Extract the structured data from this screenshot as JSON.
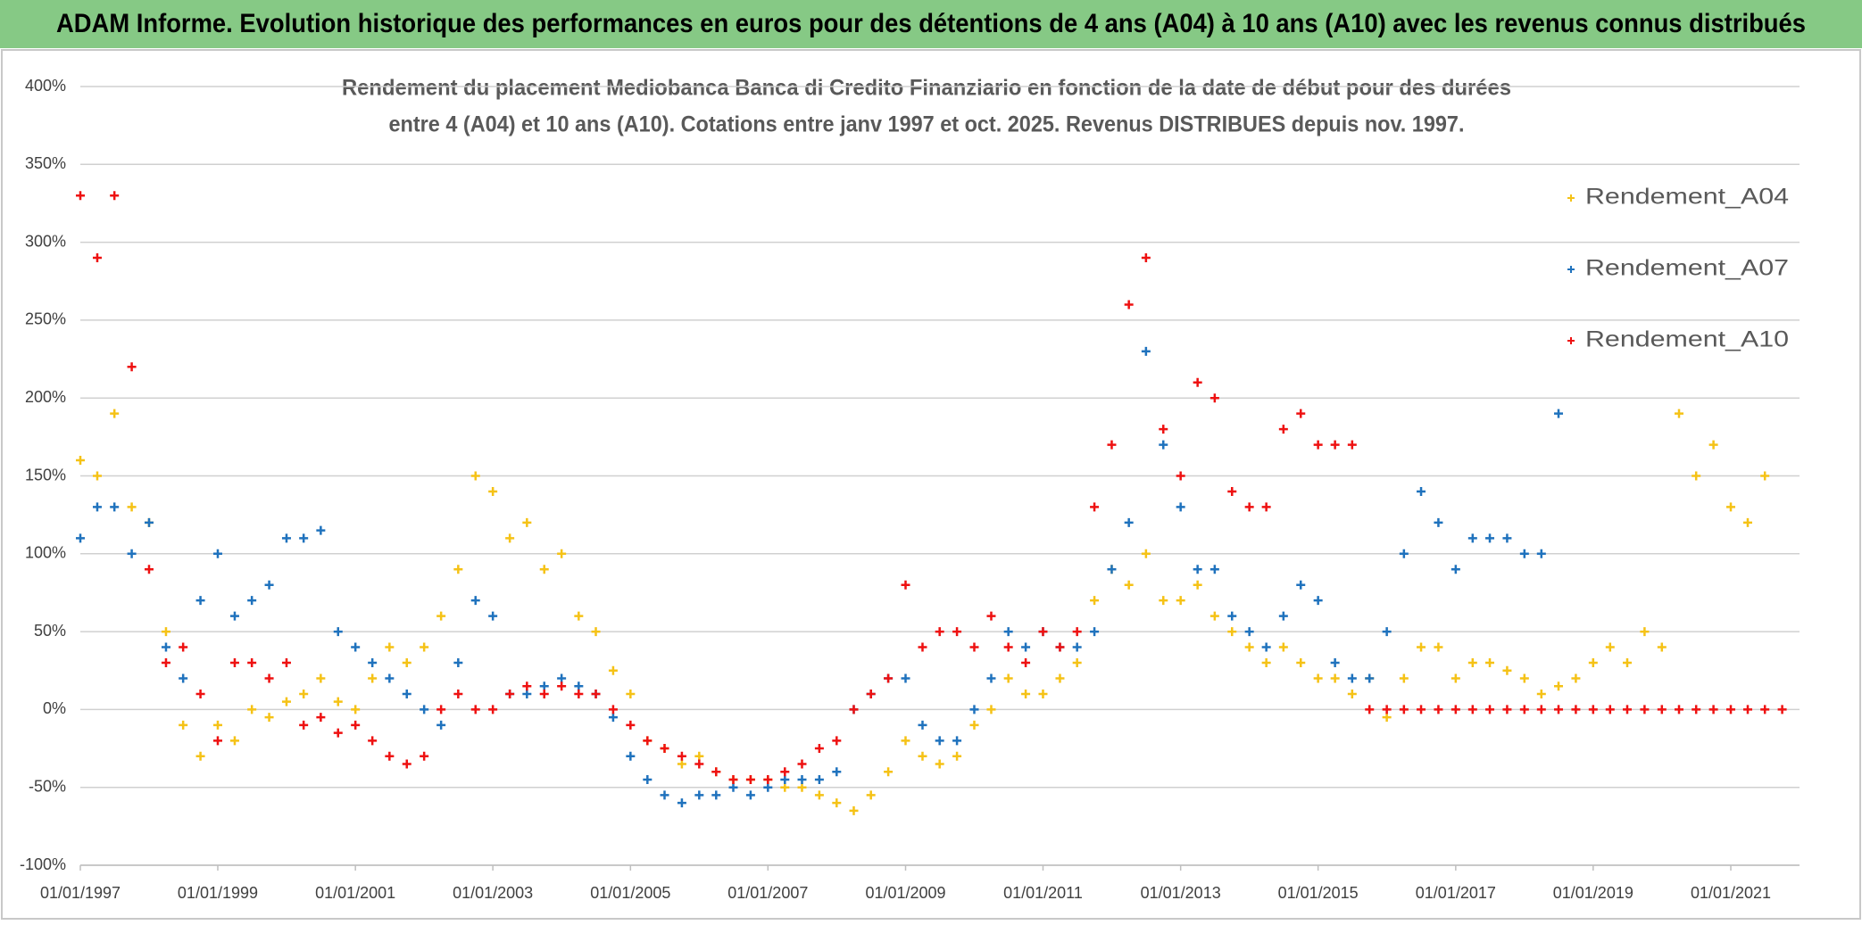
{
  "chart_data": {
    "type": "scatter",
    "title": "ADAM Informe. Evolution historique des performances en euros pour des détentions de 4 ans (A04) à 10 ans (A10) avec les revenus connus distribués",
    "subtitle": [
      "Rendement du placement Mediobanca Banca di Credito Finanziario en fonction de la date de début pour des durées",
      "entre 4 (A04) et 10 ans (A10). Cotations entre janv 1997 et oct. 2025. Revenus DISTRIBUES depuis nov. 1997."
    ],
    "x": [
      "1997-01-01",
      "1997-04-01",
      "1997-07-01",
      "1997-10-01",
      "1998-01-01",
      "1998-04-01",
      "1998-07-01",
      "1998-10-01",
      "1999-01-01",
      "1999-04-01",
      "1999-07-01",
      "1999-10-01",
      "2000-01-01",
      "2000-04-01",
      "2000-07-01",
      "2000-10-01",
      "2001-01-01",
      "2001-04-01",
      "2001-07-01",
      "2001-10-01",
      "2002-01-01",
      "2002-04-01",
      "2002-07-01",
      "2002-10-01",
      "2003-01-01",
      "2003-04-01",
      "2003-07-01",
      "2003-10-01",
      "2004-01-01",
      "2004-04-01",
      "2004-07-01",
      "2004-10-01",
      "2005-01-01",
      "2005-04-01",
      "2005-07-01",
      "2005-10-01",
      "2006-01-01",
      "2006-04-01",
      "2006-07-01",
      "2006-10-01",
      "2007-01-01",
      "2007-04-01",
      "2007-07-01",
      "2007-10-01",
      "2008-01-01",
      "2008-04-01",
      "2008-07-01",
      "2008-10-01",
      "2009-01-01",
      "2009-04-01",
      "2009-07-01",
      "2009-10-01",
      "2010-01-01",
      "2010-04-01",
      "2010-07-01",
      "2010-10-01",
      "2011-01-01",
      "2011-04-01",
      "2011-07-01",
      "2011-10-01",
      "2012-01-01",
      "2012-04-01",
      "2012-07-01",
      "2012-10-01",
      "2013-01-01",
      "2013-04-01",
      "2013-07-01",
      "2013-10-01",
      "2014-01-01",
      "2014-04-01",
      "2014-07-01",
      "2014-10-01",
      "2015-01-01",
      "2015-04-01",
      "2015-07-01",
      "2015-10-01",
      "2016-01-01",
      "2016-04-01",
      "2016-07-01",
      "2016-10-01",
      "2017-01-01",
      "2017-04-01",
      "2017-07-01",
      "2017-10-01",
      "2018-01-01",
      "2018-04-01",
      "2018-07-01",
      "2018-10-01",
      "2019-01-01",
      "2019-04-01",
      "2019-07-01",
      "2019-10-01",
      "2020-01-01",
      "2020-04-01",
      "2020-07-01",
      "2020-10-01",
      "2021-01-01",
      "2021-04-01",
      "2021-07-01",
      "2021-10-01"
    ],
    "series": [
      {
        "name": "Rendement_A04",
        "color": "#f5c216",
        "values": [
          160,
          150,
          190,
          130,
          120,
          50,
          -10,
          -30,
          -10,
          -20,
          0,
          -5,
          5,
          10,
          20,
          5,
          0,
          20,
          40,
          30,
          40,
          60,
          90,
          150,
          140,
          110,
          120,
          90,
          100,
          60,
          50,
          25,
          10,
          -20,
          -25,
          -35,
          -30,
          -40,
          -45,
          -45,
          -45,
          -50,
          -50,
          -55,
          -60,
          -65,
          -55,
          -40,
          -20,
          -30,
          -35,
          -30,
          -10,
          0,
          20,
          10,
          10,
          20,
          30,
          70,
          90,
          80,
          100,
          70,
          70,
          80,
          60,
          50,
          40,
          30,
          40,
          30,
          20,
          20,
          10,
          20,
          -5,
          20,
          40,
          40,
          20,
          30,
          30,
          25,
          20,
          10,
          15,
          20,
          30,
          40,
          30,
          50,
          40,
          190,
          150,
          170,
          130,
          120,
          150,
          null
        ]
      },
      {
        "name": "Rendement_A07",
        "color": "#1f72bd",
        "values": [
          110,
          130,
          130,
          100,
          120,
          40,
          20,
          70,
          100,
          60,
          70,
          80,
          110,
          110,
          115,
          50,
          40,
          30,
          20,
          10,
          0,
          -10,
          30,
          70,
          60,
          10,
          10,
          15,
          20,
          15,
          10,
          -5,
          -30,
          -45,
          -55,
          -60,
          -55,
          -55,
          -50,
          -55,
          -50,
          -45,
          -45,
          -45,
          -40,
          0,
          10,
          20,
          20,
          -10,
          -20,
          -20,
          0,
          20,
          50,
          40,
          50,
          40,
          40,
          50,
          90,
          120,
          230,
          170,
          130,
          90,
          90,
          60,
          50,
          40,
          60,
          80,
          70,
          30,
          20,
          20,
          50,
          100,
          140,
          120,
          90,
          110,
          110,
          110,
          100,
          100,
          190,
          null,
          null,
          null,
          null,
          null,
          null,
          null,
          null,
          null,
          null,
          null,
          null,
          null
        ]
      },
      {
        "name": "Rendement_A10",
        "color": "#ee1111",
        "values": [
          330,
          290,
          330,
          220,
          90,
          30,
          40,
          10,
          -20,
          30,
          30,
          20,
          30,
          -10,
          -5,
          -15,
          -10,
          -20,
          -30,
          -35,
          -30,
          0,
          10,
          0,
          0,
          10,
          15,
          10,
          15,
          10,
          10,
          0,
          -10,
          -20,
          -25,
          -30,
          -35,
          -40,
          -45,
          -45,
          -45,
          -40,
          -35,
          -25,
          -20,
          0,
          10,
          20,
          80,
          40,
          50,
          50,
          40,
          60,
          40,
          30,
          50,
          40,
          50,
          130,
          170,
          260,
          290,
          180,
          150,
          210,
          200,
          140,
          130,
          130,
          180,
          190,
          170,
          170,
          170,
          0,
          0,
          0,
          0,
          0,
          0,
          0,
          0,
          0,
          0,
          0,
          0,
          0,
          0,
          0,
          0,
          0,
          0,
          0,
          0,
          0,
          0,
          0,
          0,
          0
        ]
      }
    ],
    "xlim": [
      "1997-01-01",
      "2022-01-01"
    ],
    "xticks": [
      {
        "value": "1997-01-01",
        "label": "01/01/1997"
      },
      {
        "value": "1999-01-01",
        "label": "01/01/1999"
      },
      {
        "value": "2001-01-01",
        "label": "01/01/2001"
      },
      {
        "value": "2003-01-01",
        "label": "01/01/2003"
      },
      {
        "value": "2005-01-01",
        "label": "01/01/2005"
      },
      {
        "value": "2007-01-01",
        "label": "01/01/2007"
      },
      {
        "value": "2009-01-01",
        "label": "01/01/2009"
      },
      {
        "value": "2011-01-01",
        "label": "01/01/2011"
      },
      {
        "value": "2013-01-01",
        "label": "01/01/2013"
      },
      {
        "value": "2015-01-01",
        "label": "01/01/2015"
      },
      {
        "value": "2017-01-01",
        "label": "01/01/2017"
      },
      {
        "value": "2019-01-01",
        "label": "01/01/2019"
      },
      {
        "value": "2021-01-01",
        "label": "01/01/2021"
      }
    ],
    "ylim": [
      -100,
      400
    ],
    "yticks": [
      {
        "value": -100,
        "label": "-100%"
      },
      {
        "value": -50,
        "label": "-50%"
      },
      {
        "value": 0,
        "label": "0%"
      },
      {
        "value": 50,
        "label": "50%"
      },
      {
        "value": 100,
        "label": "100%"
      },
      {
        "value": 150,
        "label": "150%"
      },
      {
        "value": 200,
        "label": "200%"
      },
      {
        "value": 250,
        "label": "250%"
      },
      {
        "value": 300,
        "label": "300%"
      },
      {
        "value": 350,
        "label": "350%"
      },
      {
        "value": 400,
        "label": "400%"
      }
    ],
    "grid": true,
    "legend": "right"
  }
}
